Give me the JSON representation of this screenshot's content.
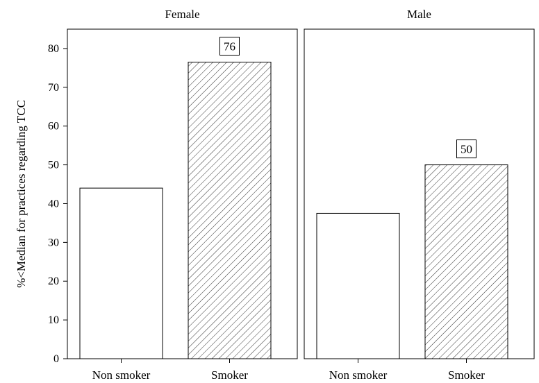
{
  "chart_data": {
    "type": "bar",
    "panels": [
      {
        "title": "Female",
        "categories": [
          "Non smoker",
          "Smoker"
        ],
        "values": [
          44,
          76.5
        ],
        "data_labels": [
          "",
          "76"
        ]
      },
      {
        "title": "Male",
        "categories": [
          "Non smoker",
          "Smoker"
        ],
        "values": [
          37.5,
          50
        ],
        "data_labels": [
          "",
          "50"
        ]
      }
    ],
    "bar_styles": [
      "white",
      "hatched"
    ],
    "ylabel": "%<Median for practices regarding TCC",
    "xlabel": "",
    "ylim": [
      0,
      85
    ],
    "yticks": [
      0,
      10,
      20,
      30,
      40,
      50,
      60,
      70,
      80
    ],
    "grid": false
  }
}
